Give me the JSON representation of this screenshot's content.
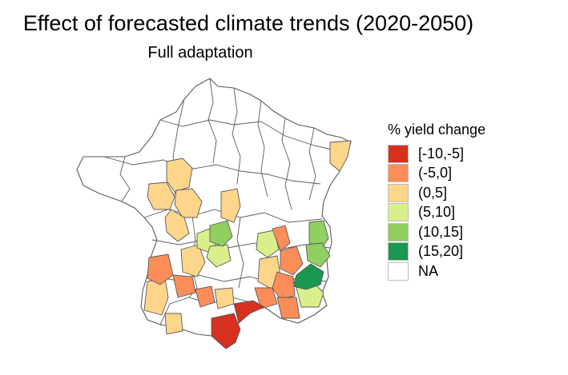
{
  "title": "Effect of forecasted climate trends (2020-2050)",
  "subtitle": "Full adaptation",
  "legend": {
    "title": "% yield change",
    "items": [
      {
        "label": "[-10,-5]",
        "color": "#d7301f"
      },
      {
        "label": "(-5,0]",
        "color": "#fc8d59"
      },
      {
        "label": "(0,5]",
        "color": "#fdd58b"
      },
      {
        "label": "(5,10]",
        "color": "#d9ef8b"
      },
      {
        "label": "(10,15]",
        "color": "#91cf60"
      },
      {
        "label": "(15,20]",
        "color": "#1a9850"
      },
      {
        "label": "NA",
        "color": "#ffffff"
      }
    ]
  },
  "region_classes": {
    "cat1": "[-10,-5]",
    "cat2": "(-5,0]",
    "cat3": "(0,5]",
    "cat4": "(5,10]",
    "cat5": "(10,15]",
    "cat6": "(15,20]"
  }
}
